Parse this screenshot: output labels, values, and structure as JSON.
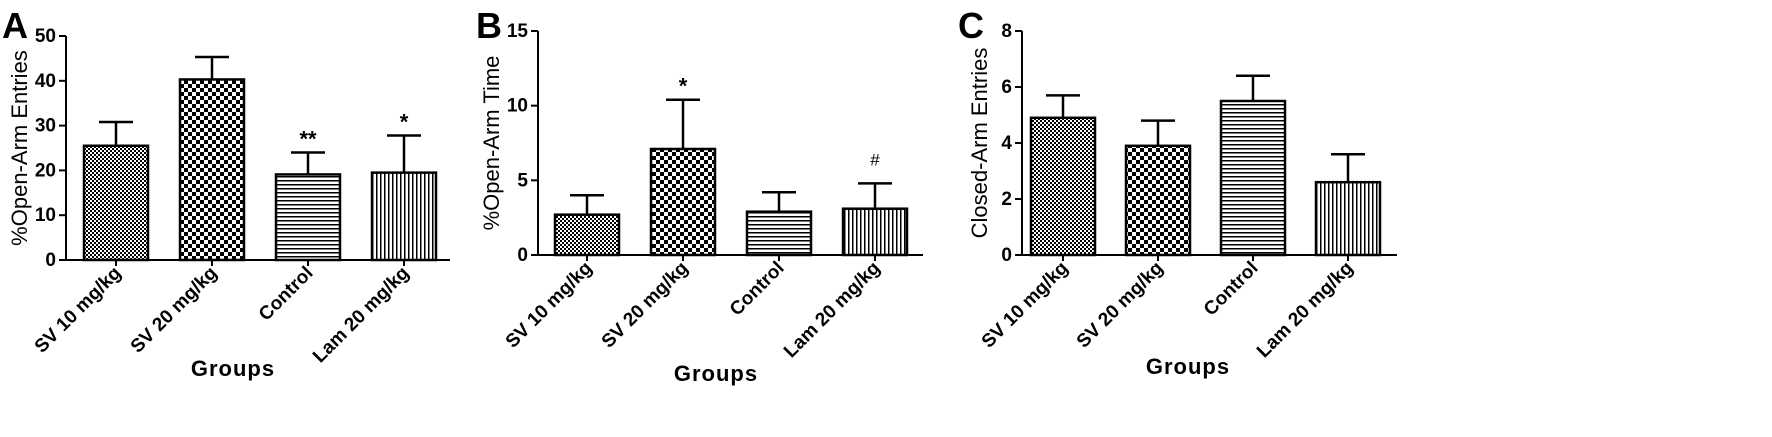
{
  "chart_data": [
    {
      "type": "bar",
      "panel_label": "A",
      "categories": [
        "SV 10 mg/kg",
        "SV 20 mg/kg",
        "Control",
        "Lam 20 mg/kg"
      ],
      "values": [
        25.5,
        40.3,
        19.1,
        19.5
      ],
      "errors": [
        5.3,
        5.0,
        4.9,
        8.3
      ],
      "annotations": [
        "",
        "",
        "**",
        "*"
      ],
      "patterns": [
        "fine-check",
        "coarse-check",
        "horizontal",
        "vertical"
      ],
      "xlabel": "Groups",
      "ylabel": "%Open-Arm Entries",
      "ylim": [
        0,
        50
      ],
      "yticks": [
        0,
        10,
        20,
        30,
        40,
        50
      ]
    },
    {
      "type": "bar",
      "panel_label": "B",
      "categories": [
        "SV 10 mg/kg",
        "SV 20 mg/kg",
        "Control",
        "Lam 20 mg/kg"
      ],
      "values": [
        2.7,
        7.1,
        2.9,
        3.1
      ],
      "errors": [
        1.3,
        3.3,
        1.3,
        1.7
      ],
      "annotations": [
        "",
        "*",
        "",
        "#"
      ],
      "patterns": [
        "fine-check",
        "coarse-check",
        "horizontal",
        "vertical"
      ],
      "xlabel": "Groups",
      "ylabel": "%Open-Arm Time",
      "ylim": [
        0,
        15
      ],
      "yticks": [
        0,
        5,
        10,
        15
      ]
    },
    {
      "type": "bar",
      "panel_label": "C",
      "categories": [
        "SV 10 mg/kg",
        "SV 20 mg/kg",
        "Control",
        "Lam 20 mg/kg"
      ],
      "values": [
        4.9,
        3.9,
        5.5,
        2.6
      ],
      "errors": [
        0.8,
        0.9,
        0.9,
        1.0
      ],
      "annotations": [
        "",
        "",
        "",
        ""
      ],
      "patterns": [
        "fine-check",
        "coarse-check",
        "horizontal",
        "vertical"
      ],
      "xlabel": "Groups",
      "ylabel": "Closed-Arm Entries",
      "ylim": [
        0,
        8
      ],
      "yticks": [
        0,
        2,
        4,
        6,
        8
      ]
    }
  ],
  "colors": {
    "bar_stroke": "#000000",
    "pattern_ink": "#000000",
    "background": "#ffffff"
  }
}
